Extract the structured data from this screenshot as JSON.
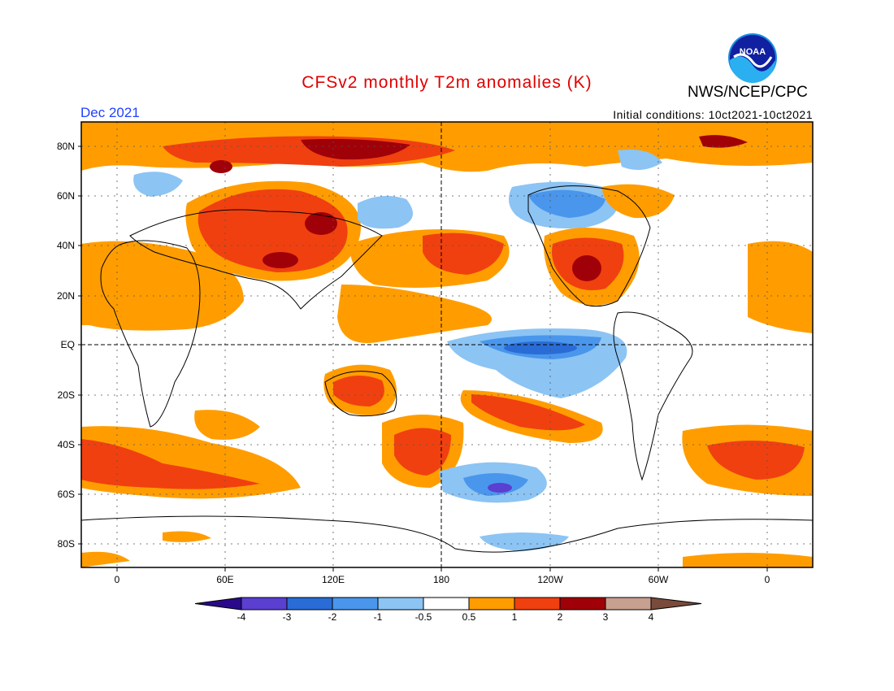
{
  "header": {
    "title": "CFSv2 monthly T2m anomalies (K)",
    "agency": "NWS/NCEP/CPC",
    "logo_text": "NOAA",
    "month": "Dec 2021",
    "initial_conditions": "Initial conditions: 10ct2021-10ct2021"
  },
  "map": {
    "lat_labels": [
      "80N",
      "60N",
      "40N",
      "20N",
      "EQ",
      "20S",
      "40S",
      "60S",
      "80S"
    ],
    "lon_labels": [
      "0",
      "60E",
      "120E",
      "180",
      "120W",
      "60W",
      "0"
    ]
  },
  "colorbar": {
    "labels": [
      "-4",
      "-3",
      "-2",
      "-1",
      "-0.5",
      "0.5",
      "1",
      "2",
      "3",
      "4"
    ],
    "colors": [
      "#2a0a8a",
      "#5a3fd0",
      "#2a6cd6",
      "#4a96ec",
      "#8cc4f4",
      "#ffffff",
      "#ff9d00",
      "#f04010",
      "#a00008",
      "#c8a090",
      "#7a4a3a"
    ]
  },
  "colors": {
    "title": "#e00000",
    "month": "#2040ff",
    "land_outline": "#000000"
  }
}
